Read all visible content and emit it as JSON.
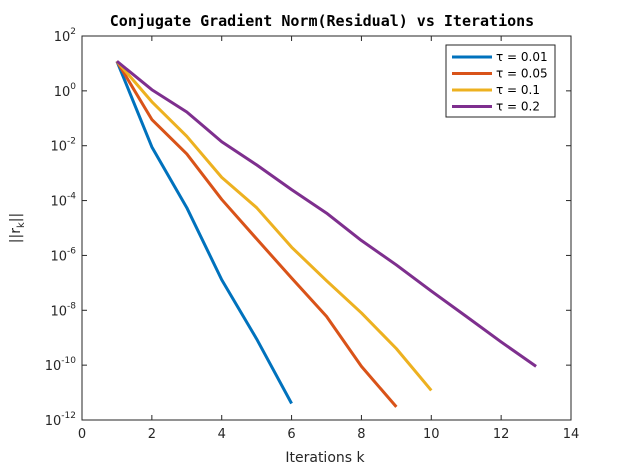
{
  "chart_data": {
    "type": "line",
    "title": "Conjugate Gradient Norm(Residual) vs Iterations",
    "xlabel": "Iterations k",
    "ylabel": "||r_k||",
    "xlim": [
      0,
      14
    ],
    "ylim": [
      1e-12,
      100
    ],
    "yscale": "log",
    "grid": false,
    "legend_position": "top-right",
    "x_ticks": [
      "0",
      "2",
      "4",
      "6",
      "8",
      "10",
      "12",
      "14"
    ],
    "y_ticks": [
      {
        "base": "10",
        "exp": "2"
      },
      {
        "base": "10",
        "exp": "0"
      },
      {
        "base": "10",
        "exp": "-2"
      },
      {
        "base": "10",
        "exp": "-4"
      },
      {
        "base": "10",
        "exp": "-6"
      },
      {
        "base": "10",
        "exp": "-8"
      },
      {
        "base": "10",
        "exp": "-10"
      },
      {
        "base": "10",
        "exp": "-12"
      }
    ],
    "series": [
      {
        "name": "τ = 0.01",
        "color": "#0072BD",
        "x": [
          1,
          2,
          3,
          4,
          5,
          6
        ],
        "y": [
          12,
          0.009,
          5.5e-05,
          1.3e-07,
          9e-10,
          4e-12
        ]
      },
      {
        "name": "τ = 0.05",
        "color": "#D95319",
        "x": [
          1,
          2,
          3,
          4,
          5,
          6,
          7,
          8,
          9
        ],
        "y": [
          12,
          0.09,
          0.005,
          0.00011,
          4e-06,
          1.5e-07,
          6e-09,
          9e-11,
          3e-12
        ]
      },
      {
        "name": "τ = 0.1",
        "color": "#EDB120",
        "x": [
          1,
          2,
          3,
          4,
          5,
          6,
          7,
          8,
          9,
          10
        ],
        "y": [
          12,
          0.4,
          0.022,
          0.0007,
          5.5e-05,
          2e-06,
          1.2e-07,
          8e-09,
          4e-10,
          1.2e-11
        ]
      },
      {
        "name": "τ = 0.2",
        "color": "#7E2F8E",
        "x": [
          1,
          2,
          3,
          4,
          5,
          6,
          7,
          8,
          9,
          10,
          11,
          12,
          13
        ],
        "y": [
          12,
          1.1,
          0.17,
          0.014,
          0.002,
          0.00025,
          3.5e-05,
          3.5e-06,
          4.5e-07,
          5e-08,
          6e-09,
          7e-10,
          9e-11
        ]
      }
    ]
  }
}
